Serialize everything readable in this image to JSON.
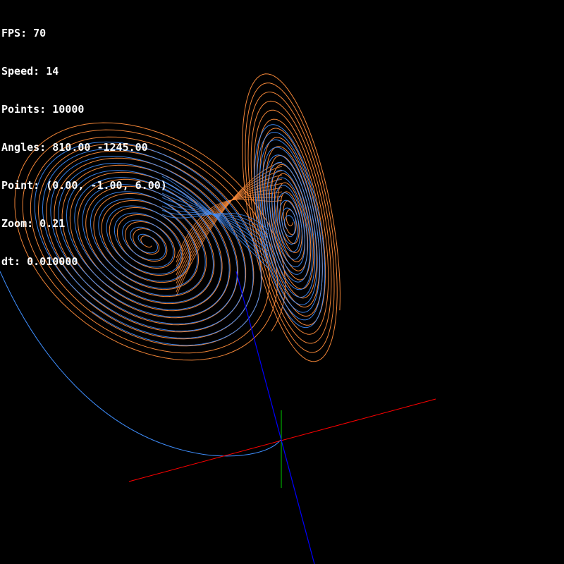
{
  "hud": {
    "fps": "FPS: 70",
    "speed": "Speed: 14",
    "points": "Points: 10000",
    "angles": "Angles: 810.00 -1245.00",
    "point": "Point: (0.00, -1.00, 6.00)",
    "zoom": "Zoom: 0.21",
    "dt": "dt: 0.010000"
  },
  "scene": {
    "background_color": "#000000",
    "attractor": "lorenz",
    "trajectory_colors": [
      "#ff8c3a",
      "#3f8fff"
    ],
    "axis_colors": {
      "x": "#ff0000",
      "y": "#00cc00",
      "z": "#0000ff"
    }
  }
}
